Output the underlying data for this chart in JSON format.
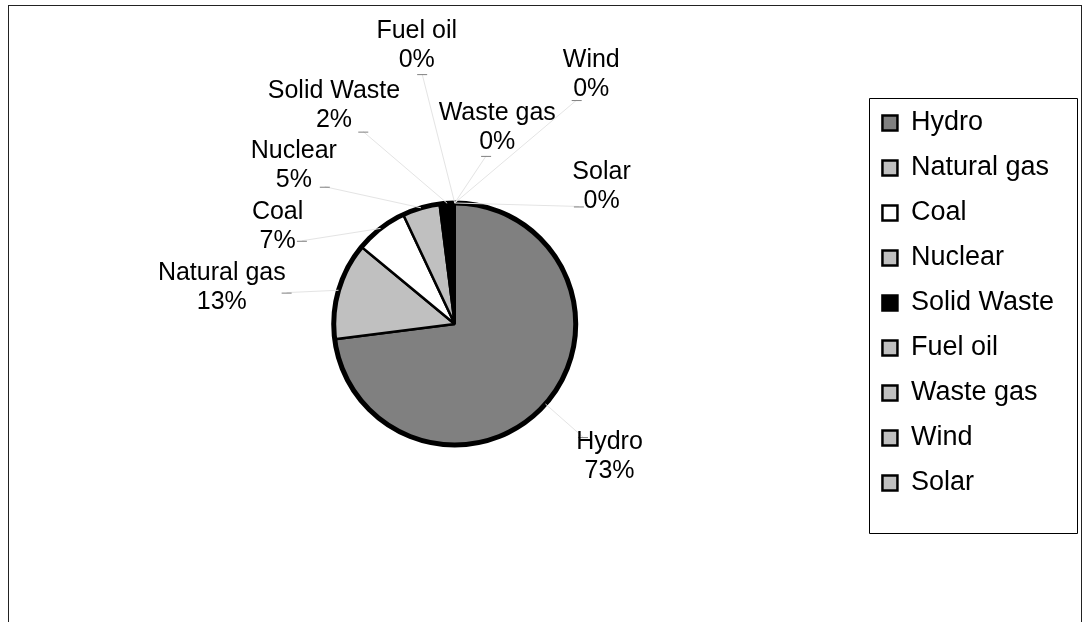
{
  "chart_data": {
    "type": "pie",
    "categories": [
      "Hydro",
      "Natural gas",
      "Coal",
      "Nuclear",
      "Solid Waste",
      "Fuel oil",
      "Waste gas",
      "Wind",
      "Solar"
    ],
    "values": [
      73,
      13,
      7,
      5,
      2,
      0,
      0,
      0,
      0
    ],
    "colors": [
      "#808080",
      "#c0c0c0",
      "#ffffff",
      "#c0c0c0",
      "#000000",
      "#c0c0c0",
      "#c0c0c0",
      "#c0c0c0",
      "#c0c0c0"
    ],
    "value_labels": [
      "73%",
      "13%",
      "7%",
      "5%",
      "2%",
      "0%",
      "0%",
      "0%",
      "0%"
    ],
    "legend": "right"
  }
}
